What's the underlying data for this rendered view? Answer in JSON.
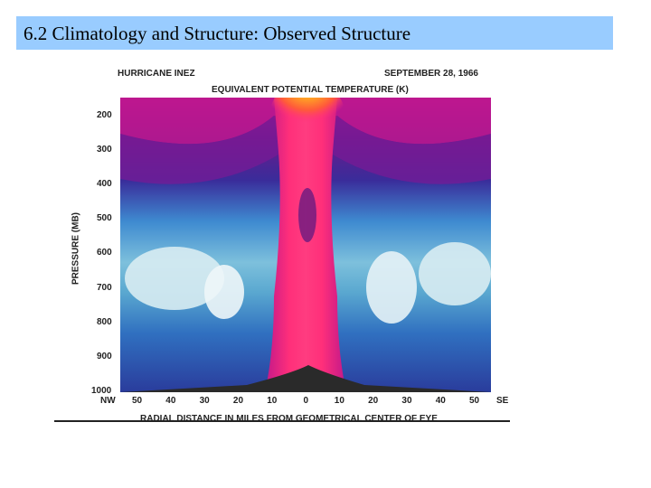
{
  "slide": {
    "title": "6.2 Climatology and Structure: Observed Structure"
  },
  "figure": {
    "storm_name": "HURRICANE INEZ",
    "date": "SEPTEMBER 28, 1966",
    "heading": "EQUIVALENT POTENTIAL TEMPERATURE (K)",
    "y_axis_label": "PRESSURE (MB)",
    "x_axis_label": "RADIAL DISTANCE IN MILES FROM GEOMETRICAL CENTER OF EYE",
    "x_left_label": "NW",
    "x_right_label": "SE",
    "y_ticks": [
      "200",
      "300",
      "400",
      "500",
      "600",
      "700",
      "800",
      "900",
      "1000"
    ],
    "x_ticks": [
      "50",
      "40",
      "30",
      "20",
      "10",
      "0",
      "10",
      "20",
      "30",
      "40",
      "50"
    ]
  },
  "colors": {
    "title_bar": "#99ccff",
    "core_warm": "#ff2f7a",
    "upper_warm": "#ffcc22",
    "outflow": "#a0188a",
    "mid_cool": "#3e8ad0",
    "low_cool": "#a8d8e4",
    "surface": "#2a2a2a"
  }
}
